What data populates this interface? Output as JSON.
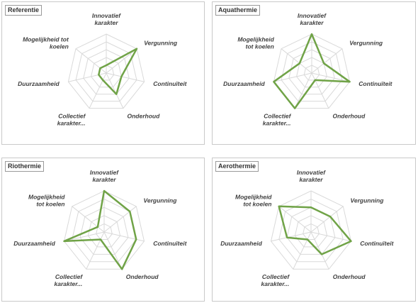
{
  "chart_data": [
    {
      "type": "radar",
      "title": "Referentie",
      "categories": [
        "Innovatief karakter",
        "Vergunning",
        "Continuïteit",
        "Onderhoud",
        "Collectief karakter...",
        "Duurzaamheid",
        "Mogelijkheid tot koelen"
      ],
      "label_lines": [
        [
          "Innovatief",
          "karakter"
        ],
        [
          "Vergunning"
        ],
        [
          "Continuïteit"
        ],
        [
          "Onderhoud"
        ],
        [
          "Collectief",
          "karakter..."
        ],
        [
          "Duurzaamheid"
        ],
        [
          "Mogelijkheid tot",
          "koelen"
        ]
      ],
      "values": [
        1,
        5,
        2,
        3,
        1,
        1,
        1
      ],
      "rlim": [
        0,
        5
      ],
      "line_color": "#70a347"
    },
    {
      "type": "radar",
      "title": "Aquathermie",
      "categories": [
        "Innovatief karakter",
        "Vergunning",
        "Continuïteit",
        "Onderhoud",
        "Collectief karakter...",
        "Duurzaamheid",
        "Mogelijkheid tot koelen"
      ],
      "label_lines": [
        [
          "Innovatief",
          "karakter"
        ],
        [
          "Vergunning"
        ],
        [
          "Continuïteit"
        ],
        [
          "Onderhoud"
        ],
        [
          "Collectief",
          "karakter..."
        ],
        [
          "Duurzaamheid"
        ],
        [
          "Mogelijkheid",
          "tot koelen"
        ]
      ],
      "values": [
        5,
        2,
        5,
        1,
        5,
        5,
        2
      ],
      "rlim": [
        0,
        5
      ],
      "line_color": "#70a347"
    },
    {
      "type": "radar",
      "title": "Riothermie",
      "categories": [
        "Innovatief karakter",
        "Vergunning",
        "Continuïteit",
        "Onderhoud",
        "Collectief karakter...",
        "Duurzaamheid",
        "Mogelijkheid tot koelen"
      ],
      "label_lines": [
        [
          "Innovatief",
          "karakter"
        ],
        [
          "Vergunning"
        ],
        [
          "Continuïteit"
        ],
        [
          "Onderhoud"
        ],
        [
          "Collectief",
          "karakter..."
        ],
        [
          "Duurzaamheid"
        ],
        [
          "Mogelijkheid",
          "tot koelen"
        ]
      ],
      "values": [
        5,
        4,
        4,
        5,
        1,
        5,
        1
      ],
      "rlim": [
        0,
        5
      ],
      "line_color": "#70a347"
    },
    {
      "type": "radar",
      "title": "Aerothermie",
      "categories": [
        "Innovatief karakter",
        "Vergunning",
        "Continuïteit",
        "Onderhoud",
        "Collectief karakter...",
        "Duurzaamheid",
        "Mogelijkheid tot koelen"
      ],
      "label_lines": [
        [
          "Innovatief",
          "karakter"
        ],
        [
          "Vergunning"
        ],
        [
          "Continuïteit"
        ],
        [
          "Onderhoud"
        ],
        [
          "Collectief",
          "karakter..."
        ],
        [
          "Duurzaamheid"
        ],
        [
          "Mogelijkheid",
          "tot koelen"
        ]
      ],
      "values": [
        3,
        3,
        5,
        3,
        1,
        3,
        5
      ],
      "rlim": [
        0,
        5
      ],
      "line_color": "#70a347"
    }
  ]
}
